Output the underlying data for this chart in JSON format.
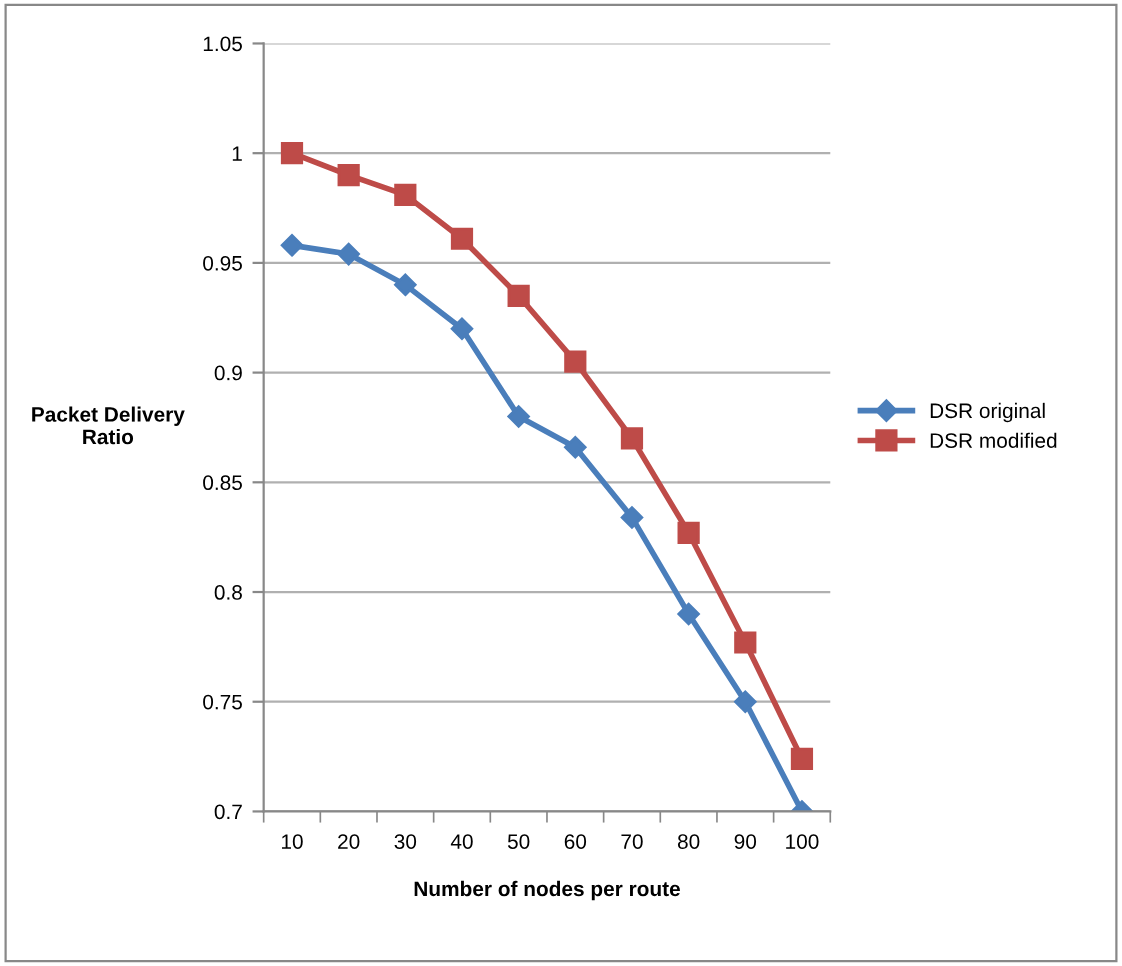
{
  "chart_data": {
    "type": "line",
    "xlabel": "Number of nodes per route",
    "ylabel": "Packet Delivery\nRatio",
    "categories": [
      "10",
      "20",
      "30",
      "40",
      "50",
      "60",
      "70",
      "80",
      "90",
      "100"
    ],
    "series": [
      {
        "name": "DSR original",
        "color": "#4a7ebb",
        "marker": "diamond",
        "values": [
          0.958,
          0.954,
          0.94,
          0.92,
          0.88,
          0.866,
          0.834,
          0.79,
          0.75,
          0.7
        ]
      },
      {
        "name": "DSR modified",
        "color": "#be4b48",
        "marker": "square",
        "values": [
          1.0,
          0.99,
          0.981,
          0.961,
          0.935,
          0.905,
          0.87,
          0.827,
          0.777,
          0.724
        ]
      }
    ],
    "ylim": [
      0.7,
      1.05
    ],
    "yticks": [
      {
        "value": 0.7,
        "label": "0.7"
      },
      {
        "value": 0.75,
        "label": "0.75"
      },
      {
        "value": 0.8,
        "label": "0.8"
      },
      {
        "value": 0.85,
        "label": "0.85"
      },
      {
        "value": 0.9,
        "label": "0.9"
      },
      {
        "value": 0.95,
        "label": "0.95"
      },
      {
        "value": 1.0,
        "label": "1"
      },
      {
        "value": 1.05,
        "label": "1.05"
      }
    ],
    "grid": "y",
    "legend": "right",
    "line_style": "solid"
  }
}
